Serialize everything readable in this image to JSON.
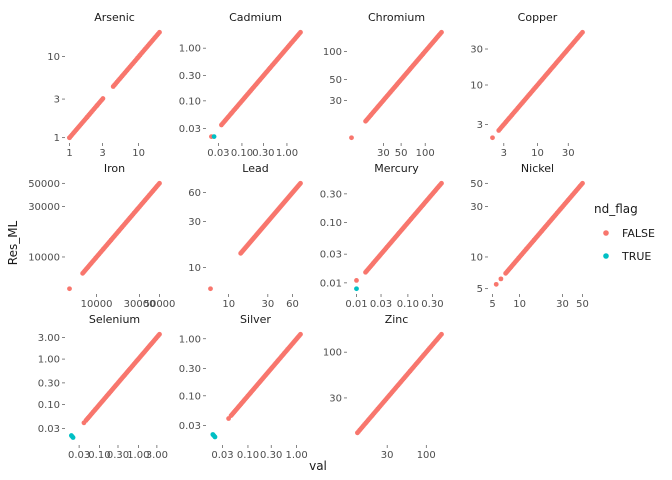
{
  "chart_data": {
    "type": "scatter",
    "facet": "element",
    "xlabel": "val",
    "ylabel": "Res_ML",
    "x_scale": "log",
    "y_scale": "log",
    "grid": false,
    "legend": {
      "title": "nd_flag",
      "position": "right",
      "entries": [
        {
          "label": "FALSE",
          "color": "#F8766D"
        },
        {
          "label": "TRUE",
          "color": "#00BFC4"
        }
      ]
    },
    "panels": [
      {
        "name": "Arsenic",
        "range": [
          1,
          20
        ],
        "xticks": [
          1,
          3,
          10
        ],
        "xtick_labels": [
          "1",
          "3",
          "10"
        ],
        "yticks": [
          1,
          3,
          10
        ],
        "ytick_labels": [
          "1",
          "3",
          "10"
        ],
        "false_min": 1,
        "false_max": 20,
        "false_gaps": [
          [
            3.1,
            4.2
          ]
        ],
        "isolated_false": [
          [
            1,
            1
          ],
          [
            1.8,
            1.8
          ],
          [
            2.5,
            2.5
          ]
        ],
        "true_points": []
      },
      {
        "name": "Cadmium",
        "range": [
          0.02,
          2.0
        ],
        "xticks": [
          0.03,
          0.1,
          0.3,
          1.0
        ],
        "xtick_labels": [
          "0.03",
          "0.10",
          "0.30",
          "1.00"
        ],
        "yticks": [
          0.03,
          0.1,
          0.3,
          1.0
        ],
        "ytick_labels": [
          "0.03",
          "0.10",
          "0.30",
          "1.00"
        ],
        "false_min": 0.035,
        "false_max": 2.0,
        "false_gaps": [],
        "isolated_false": [
          [
            0.021,
            0.021
          ]
        ],
        "true_points": [
          [
            0.024,
            0.021
          ]
        ]
      },
      {
        "name": "Chromium",
        "range": [
          12,
          160
        ],
        "xticks": [
          30,
          50,
          100
        ],
        "xtick_labels": [
          "30",
          "50",
          "100"
        ],
        "yticks": [
          30,
          50,
          100
        ],
        "ytick_labels": [
          "30",
          "50",
          "100"
        ],
        "false_min": 18,
        "false_max": 160,
        "false_gaps": [],
        "isolated_false": [
          [
            12,
            12
          ]
        ],
        "true_points": []
      },
      {
        "name": "Copper",
        "range": [
          2,
          50
        ],
        "xticks": [
          3,
          10,
          30
        ],
        "xtick_labels": [
          "3",
          "10",
          "30"
        ],
        "yticks": [
          3,
          10,
          30
        ],
        "ytick_labels": [
          "3",
          "10",
          "30"
        ],
        "false_min": 2.5,
        "false_max": 50,
        "false_gaps": [],
        "isolated_false": [
          [
            2,
            2
          ]
        ],
        "true_points": []
      },
      {
        "name": "Iron",
        "range": [
          5000,
          50000
        ],
        "xticks": [
          10000,
          30000,
          50000
        ],
        "xtick_labels": [
          "10000",
          "30000",
          "50000"
        ],
        "yticks": [
          10000,
          30000,
          50000
        ],
        "ytick_labels": [
          "10000",
          "30000",
          "50000"
        ],
        "false_min": 7000,
        "false_max": 50000,
        "false_gaps": [],
        "isolated_false": [
          [
            5000,
            5000
          ]
        ],
        "true_points": []
      },
      {
        "name": "Lead",
        "range": [
          6,
          75
        ],
        "xticks": [
          10,
          30,
          60
        ],
        "xtick_labels": [
          "10",
          "30",
          "60"
        ],
        "yticks": [
          10,
          30,
          60
        ],
        "ytick_labels": [
          "10",
          "30",
          "60"
        ],
        "false_min": 14,
        "false_max": 75,
        "false_gaps": [],
        "isolated_false": [
          [
            6,
            6
          ]
        ],
        "true_points": []
      },
      {
        "name": "Mercury",
        "range": [
          0.008,
          0.45
        ],
        "xticks": [
          0.01,
          0.03,
          0.1,
          0.3
        ],
        "xtick_labels": [
          "0.01",
          "0.03",
          "0.10",
          "0.30"
        ],
        "yticks": [
          0.01,
          0.03,
          0.1,
          0.3
        ],
        "ytick_labels": [
          "0.01",
          "0.03",
          "0.10",
          "0.30"
        ],
        "false_min": 0.015,
        "false_max": 0.45,
        "false_gaps": [],
        "isolated_false": [
          [
            0.01,
            0.011
          ]
        ],
        "true_points": [
          [
            0.01,
            0.008
          ]
        ]
      },
      {
        "name": "Nickel",
        "range": [
          5,
          50
        ],
        "xticks": [
          5,
          10,
          30,
          50
        ],
        "xtick_labels": [
          "5",
          "10",
          "30",
          "50"
        ],
        "yticks": [
          5,
          10,
          30,
          50
        ],
        "ytick_labels": [
          "5",
          "10",
          "30",
          "50"
        ],
        "false_min": 7,
        "false_max": 50,
        "false_gaps": [],
        "isolated_false": [
          [
            5.5,
            5.5
          ],
          [
            6.2,
            6.2
          ]
        ],
        "true_points": []
      },
      {
        "name": "Selenium",
        "range": [
          0.017,
          3.5
        ],
        "xticks": [
          0.03,
          0.1,
          0.3,
          1.0,
          3.0
        ],
        "xtick_labels": [
          "0.03",
          "0.10",
          "0.30",
          "1.00",
          "3.00"
        ],
        "yticks": [
          0.03,
          0.1,
          0.3,
          1.0,
          3.0
        ],
        "ytick_labels": [
          "0.03",
          "0.10",
          "0.30",
          "1.00",
          "3.00"
        ],
        "false_min": 0.045,
        "false_max": 3.5,
        "false_gaps": [],
        "isolated_false": [
          [
            0.04,
            0.04
          ]
        ],
        "true_points": [
          [
            0.02,
            0.02
          ],
          [
            0.021,
            0.019
          ],
          [
            0.019,
            0.021
          ]
        ]
      },
      {
        "name": "Silver",
        "range": [
          0.017,
          1.2
        ],
        "xticks": [
          0.03,
          0.1,
          0.3,
          1.0
        ],
        "xtick_labels": [
          "0.03",
          "0.10",
          "0.30",
          "1.00"
        ],
        "yticks": [
          0.03,
          0.1,
          0.3,
          1.0
        ],
        "ytick_labels": [
          "0.03",
          "0.10",
          "0.30",
          "1.00"
        ],
        "false_min": 0.045,
        "false_max": 1.2,
        "false_gaps": [],
        "isolated_false": [
          [
            0.04,
            0.04
          ]
        ],
        "true_points": [
          [
            0.02,
            0.02
          ],
          [
            0.021,
            0.019
          ],
          [
            0.019,
            0.021
          ]
        ]
      },
      {
        "name": "Zinc",
        "range": [
          10,
          160
        ],
        "xticks": [
          30,
          100
        ],
        "xtick_labels": [
          "30",
          "100"
        ],
        "yticks": [
          30,
          100
        ],
        "ytick_labels": [
          "30",
          "100"
        ],
        "false_min": 12,
        "false_max": 160,
        "false_gaps": [],
        "isolated_false": [],
        "true_points": []
      }
    ]
  }
}
